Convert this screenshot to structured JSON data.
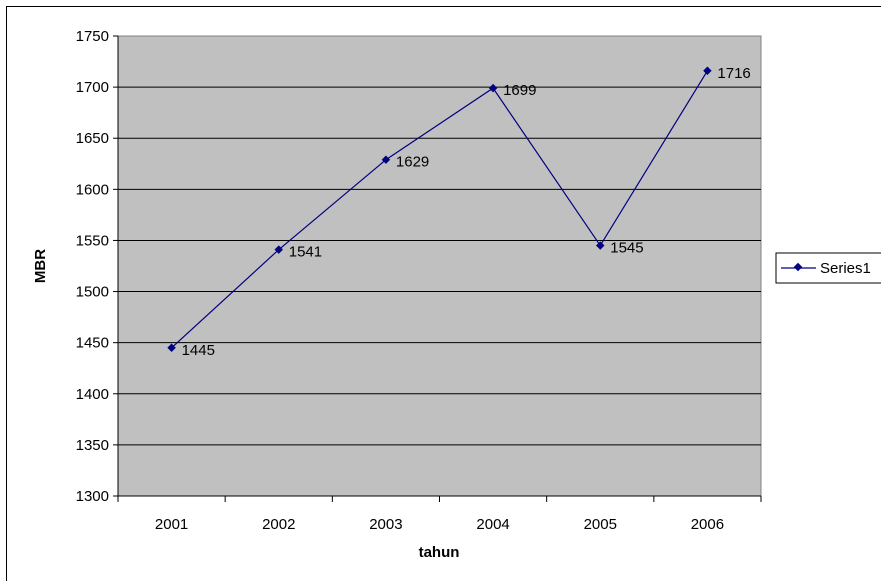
{
  "chart_data": {
    "type": "line",
    "title": "",
    "xlabel": "tahun",
    "ylabel": "MBR",
    "categories": [
      "2001",
      "2002",
      "2003",
      "2004",
      "2005",
      "2006"
    ],
    "series": [
      {
        "name": "Series1",
        "values": [
          1445,
          1541,
          1629,
          1699,
          1545,
          1716
        ],
        "color": "#000080"
      }
    ],
    "data_labels": [
      "1445",
      "1541",
      "1629",
      "1699",
      "1545",
      "1716"
    ],
    "ylim": [
      1300,
      1750
    ],
    "yticks": [
      "1300",
      "1350",
      "1400",
      "1450",
      "1500",
      "1550",
      "1600",
      "1650",
      "1700",
      "1750"
    ],
    "grid": true,
    "plot_background": "#c0c0c0",
    "legend": "right"
  }
}
